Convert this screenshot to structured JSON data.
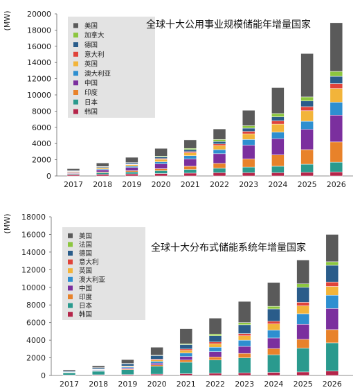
{
  "chart_data": [
    {
      "type": "bar",
      "stacked": true,
      "title": "全球十大公用事业规模储能年增量国家",
      "ylabel": "(MW)",
      "ylim": [
        0,
        20000
      ],
      "yticks": [
        0,
        2000,
        4000,
        6000,
        8000,
        10000,
        12000,
        14000,
        16000,
        18000,
        20000
      ],
      "legend_position": "top-left",
      "grid": false,
      "categories": [
        "2017",
        "2018",
        "2019",
        "2020",
        "2021",
        "2022",
        "2023",
        "2024",
        "2025",
        "2026"
      ],
      "series": [
        {
          "name": "韩国",
          "color": "#b5254a",
          "values": [
            150,
            200,
            250,
            300,
            350,
            400,
            400,
            400,
            450,
            500
          ]
        },
        {
          "name": "日本",
          "color": "#2a9a8e",
          "values": [
            100,
            200,
            250,
            350,
            450,
            550,
            700,
            800,
            1000,
            1200
          ]
        },
        {
          "name": "印度",
          "color": "#e8822a",
          "values": [
            50,
            100,
            150,
            250,
            400,
            600,
            1000,
            1400,
            1800,
            2500
          ]
        },
        {
          "name": "中国",
          "color": "#7b2f9e",
          "values": [
            100,
            250,
            400,
            600,
            900,
            1200,
            1700,
            2000,
            2500,
            3300
          ]
        },
        {
          "name": "澳大利亚",
          "color": "#2e8fd0",
          "values": [
            50,
            100,
            150,
            250,
            400,
            500,
            700,
            800,
            1000,
            1600
          ]
        },
        {
          "name": "英国",
          "color": "#f2b43a",
          "values": [
            100,
            150,
            200,
            300,
            350,
            500,
            700,
            1000,
            1300,
            1700
          ]
        },
        {
          "name": "意大利",
          "color": "#e0433a",
          "values": [
            20,
            30,
            50,
            100,
            150,
            200,
            300,
            400,
            500,
            600
          ]
        },
        {
          "name": "德国",
          "color": "#2a5c8a",
          "values": [
            80,
            100,
            150,
            200,
            250,
            300,
            400,
            500,
            700,
            900
          ]
        },
        {
          "name": "加拿大",
          "color": "#8cc63f",
          "values": [
            20,
            30,
            50,
            100,
            150,
            250,
            300,
            400,
            500,
            600
          ]
        },
        {
          "name": "美国",
          "color": "#5a5a5a",
          "values": [
            230,
            440,
            650,
            950,
            1050,
            1300,
            1900,
            3200,
            5350,
            6000
          ]
        }
      ],
      "legend": [
        "美国",
        "加拿大",
        "德国",
        "意大利",
        "英国",
        "澳大利亚",
        "中国",
        "印度",
        "日本",
        "韩国"
      ]
    },
    {
      "type": "bar",
      "stacked": true,
      "title": "全球十大分布式储能系统年增量国家",
      "ylabel": "(MW)",
      "ylim": [
        0,
        18000
      ],
      "yticks": [
        0,
        2000,
        4000,
        6000,
        8000,
        10000,
        12000,
        14000,
        16000,
        18000
      ],
      "legend_position": "top-left",
      "grid": false,
      "categories": [
        "2017",
        "2018",
        "2019",
        "2020",
        "2021",
        "2022",
        "2023",
        "2024",
        "2025",
        "2026"
      ],
      "series": [
        {
          "name": "韩国",
          "color": "#b5254a",
          "values": [
            50,
            80,
            100,
            150,
            200,
            250,
            300,
            350,
            400,
            500
          ]
        },
        {
          "name": "日本",
          "color": "#2a9a8e",
          "values": [
            250,
            400,
            550,
            900,
            1300,
            1500,
            1700,
            2000,
            2700,
            3200
          ]
        },
        {
          "name": "印度",
          "color": "#e8822a",
          "values": [
            20,
            50,
            80,
            150,
            250,
            350,
            500,
            700,
            1000,
            1500
          ]
        },
        {
          "name": "中国",
          "color": "#7b2f9e",
          "values": [
            30,
            60,
            120,
            200,
            400,
            600,
            800,
            1200,
            1700,
            2400
          ]
        },
        {
          "name": "澳大利亚",
          "color": "#2e8fd0",
          "values": [
            30,
            60,
            100,
            200,
            400,
            500,
            700,
            900,
            1200,
            1500
          ]
        },
        {
          "name": "英国",
          "color": "#f2b43a",
          "values": [
            20,
            40,
            80,
            150,
            300,
            400,
            500,
            700,
            900,
            1000
          ]
        },
        {
          "name": "意大利",
          "color": "#e0433a",
          "values": [
            20,
            30,
            50,
            100,
            150,
            200,
            250,
            300,
            400,
            500
          ]
        },
        {
          "name": "德国",
          "color": "#2a5c8a",
          "values": [
            100,
            150,
            250,
            400,
            500,
            700,
            1000,
            1400,
            1700,
            1900
          ]
        },
        {
          "name": "法国",
          "color": "#8cc63f",
          "values": [
            10,
            20,
            40,
            50,
            100,
            200,
            250,
            300,
            400,
            400
          ]
        },
        {
          "name": "美国",
          "color": "#5a5a5a",
          "values": [
            120,
            210,
            430,
            900,
            1700,
            1800,
            2400,
            2700,
            2700,
            3100
          ]
        }
      ],
      "legend": [
        "美国",
        "法国",
        "德国",
        "意大利",
        "英国",
        "澳大利亚",
        "中国",
        "印度",
        "日本",
        "韩国"
      ]
    }
  ]
}
